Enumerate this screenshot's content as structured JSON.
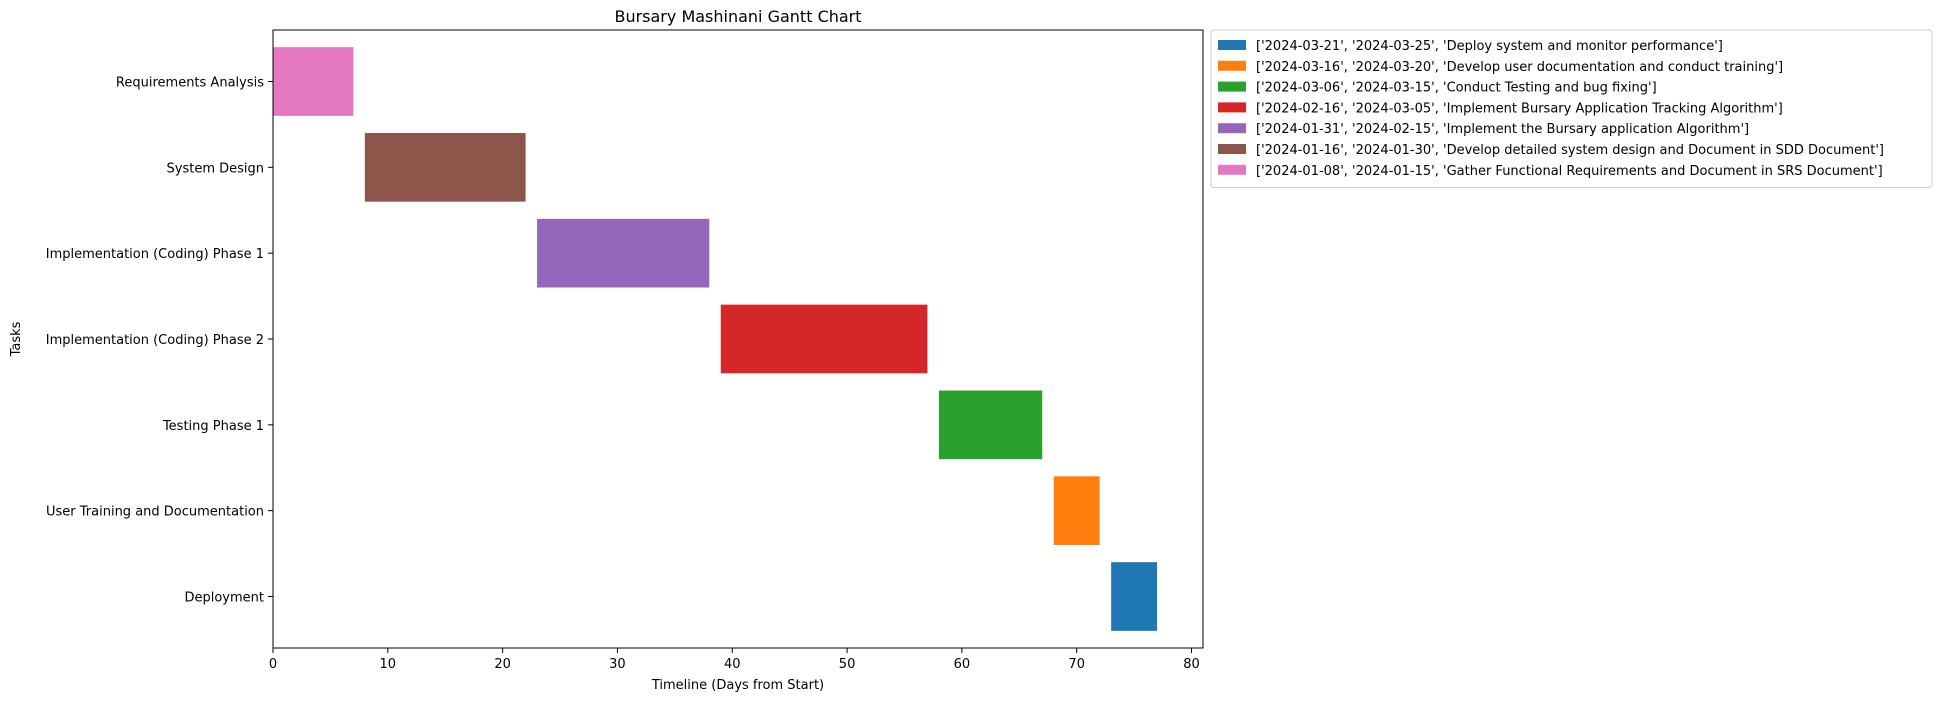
{
  "chart_data": {
    "type": "gantt",
    "title": "Bursary Mashinani Gantt Chart",
    "xlabel": "Timeline (Days from Start)",
    "ylabel": "Tasks",
    "xlim": [
      0,
      81
    ],
    "xticks": [
      0,
      10,
      20,
      30,
      40,
      50,
      60,
      70,
      80
    ],
    "grid": false,
    "legend_position": "outside top-right",
    "tasks": [
      {
        "name": "Requirements Analysis",
        "start": 0,
        "end": 7,
        "color": "#e377c2"
      },
      {
        "name": "System Design",
        "start": 8,
        "end": 22,
        "color": "#8c564b"
      },
      {
        "name": "Implementation (Coding) Phase 1",
        "start": 23,
        "end": 38,
        "color": "#9467bd"
      },
      {
        "name": "Implementation (Coding) Phase 2",
        "start": 39,
        "end": 57,
        "color": "#d62728"
      },
      {
        "name": "Testing Phase 1",
        "start": 58,
        "end": 67,
        "color": "#2ca02c"
      },
      {
        "name": "User Training and Documentation",
        "start": 68,
        "end": 72,
        "color": "#ff7f0e"
      },
      {
        "name": "Deployment",
        "start": 73,
        "end": 77,
        "color": "#1f77b4"
      }
    ],
    "legend": [
      {
        "label": "['2024-03-21', '2024-03-25', 'Deploy system and monitor performance']",
        "color": "#1f77b4"
      },
      {
        "label": "['2024-03-16', '2024-03-20', 'Develop user documentation and conduct training']",
        "color": "#ff7f0e"
      },
      {
        "label": "['2024-03-06', '2024-03-15', 'Conduct Testing and bug fixing']",
        "color": "#2ca02c"
      },
      {
        "label": "['2024-02-16', '2024-03-05', 'Implement Bursary Application Tracking Algorithm']",
        "color": "#d62728"
      },
      {
        "label": "['2024-01-31', '2024-02-15', 'Implement the Bursary application Algorithm']",
        "color": "#9467bd"
      },
      {
        "label": "['2024-01-16', '2024-01-30', 'Develop detailed system design and Document in SDD Document']",
        "color": "#8c564b"
      },
      {
        "label": "['2024-01-08', '2024-01-15', 'Gather Functional Requirements and Document in SRS Document']",
        "color": "#e377c2"
      }
    ]
  }
}
